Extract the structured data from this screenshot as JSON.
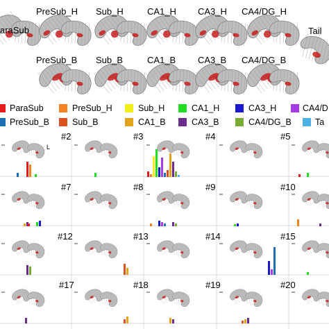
{
  "region_labels": {
    "parasub": "araSub",
    "presub_h": "PreSub_H",
    "sub_h": "Sub_H",
    "ca1_h": "CA1_H",
    "ca3_h": "CA3_H",
    "ca4dg_h": "CA4/DG_H",
    "tail": "Tail",
    "presub_b": "PreSub_B",
    "sub_b": "Sub_B",
    "ca1_b": "CA1_B",
    "ca3_b": "CA3_B",
    "ca4dg_b": "CA4/DG_B"
  },
  "legend": [
    {
      "label": "ParaSub",
      "color": "#e41a1c"
    },
    {
      "label": "PreSub_H",
      "color": "#f58220"
    },
    {
      "label": "Sub_H",
      "color": "#f2ee1b"
    },
    {
      "label": "CA1_H",
      "color": "#22dd22"
    },
    {
      "label": "CA3_H",
      "color": "#1a1acc"
    },
    {
      "label": "CA4/D",
      "color": "#a63ce6"
    },
    {
      "label": "PreSub_B",
      "color": "#1a6fb5"
    },
    {
      "label": "Sub_B",
      "color": "#d9531e"
    },
    {
      "label": "CA1_B",
      "color": "#e3a31c"
    },
    {
      "label": "CA3_B",
      "color": "#6c2a8c"
    },
    {
      "label": "CA4/DG_B",
      "color": "#78ab30"
    },
    {
      "label": "Ta",
      "color": "#4db3e6"
    }
  ],
  "panels": [
    {
      "id": "#2",
      "side_label": "L"
    },
    {
      "id": "#3"
    },
    {
      "id": "#4"
    },
    {
      "id": "#5"
    },
    {
      "id": "#7"
    },
    {
      "id": "#8"
    },
    {
      "id": "#9"
    },
    {
      "id": "#10"
    },
    {
      "id": "#12"
    },
    {
      "id": "#13"
    },
    {
      "id": "#14"
    },
    {
      "id": "#15"
    },
    {
      "id": "#17"
    },
    {
      "id": "#18"
    },
    {
      "id": "#19"
    },
    {
      "id": "#20"
    }
  ],
  "colors": {
    "mesh": "#bdbdbd",
    "mesh_edge": "#808080",
    "highlight": "#c81e1e"
  }
}
